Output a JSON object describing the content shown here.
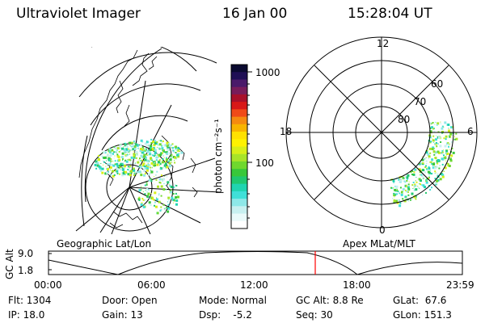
{
  "header": {
    "instrument": "Ultraviolet Imager",
    "date": "16 Jan 00",
    "time": "15:28:04 UT"
  },
  "colorbar": {
    "unit_label": "photon cm⁻²s⁻¹",
    "ticks": [
      "1000",
      "100"
    ],
    "colors": [
      "#0a0a30",
      "#1f0f55",
      "#4a1a6a",
      "#781c5a",
      "#a8102a",
      "#d81818",
      "#f04a18",
      "#f58a10",
      "#f8b400",
      "#ffe100",
      "#fff200",
      "#d8ef18",
      "#a8e428",
      "#6fd82e",
      "#38c83a",
      "#20c870",
      "#20d4b0",
      "#40e0d8",
      "#8ee8e8",
      "#c8f0f0",
      "#eafafa",
      "#ffffff"
    ]
  },
  "geo_panel": {
    "label": "Geographic Lat/Lon"
  },
  "polar_panel": {
    "label": "Apex MLat/MLT",
    "mlt_labels": [
      "12",
      "18",
      "6",
      "0"
    ],
    "lat_labels": [
      "60",
      "70",
      "80"
    ]
  },
  "altitude_plot": {
    "ylabel": "GC Alt",
    "y_ticks": [
      "9.0",
      "1.8"
    ],
    "x_ticks": [
      "00:00",
      "06:00",
      "12:00",
      "18:00",
      "23:59"
    ],
    "current_time_hours": 15.47
  },
  "status": {
    "flt": "Flt: 1304",
    "ip": "IP: 18.0",
    "door": "Door: Open",
    "gain": "Gain: 13",
    "mode": "Mode: Normal",
    "dsp": "Dsp:    -5.2",
    "gc_alt": "GC Alt: 8.8 Re",
    "seq": "Seq: 30",
    "glat": "GLat:  67.6",
    "glon": "GLon: 151.3"
  },
  "colors": {
    "current_time_marker": "#ff0000",
    "foreground": "#000000",
    "background": "#ffffff"
  }
}
